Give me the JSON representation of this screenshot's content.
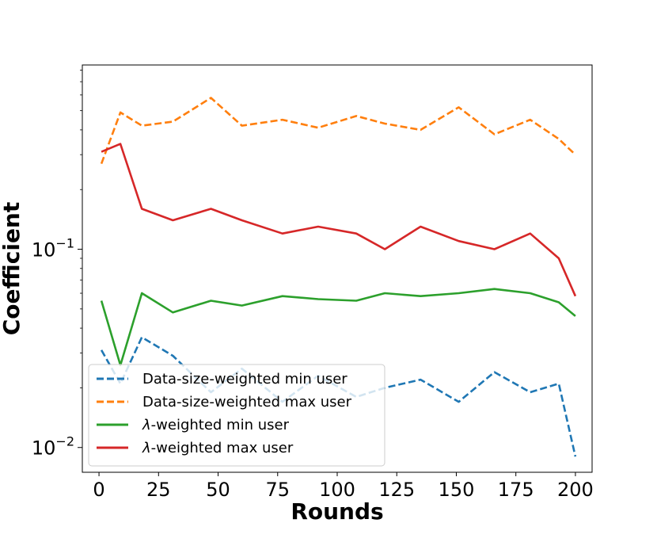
{
  "chart_data": {
    "type": "line",
    "title": "",
    "xlabel": "Rounds",
    "ylabel": "Coefficient",
    "y_scale": "log",
    "xlim": [
      -7,
      207
    ],
    "ylim": [
      0.0075,
      0.85
    ],
    "x_ticks": [
      0,
      25,
      50,
      75,
      100,
      125,
      150,
      175,
      200
    ],
    "x_tick_labels": [
      "0",
      "25",
      "50",
      "75",
      "100",
      "125",
      "150",
      "175",
      "200"
    ],
    "y_ticks": [
      0.01,
      0.1
    ],
    "y_tick_labels": [
      {
        "base": "10",
        "exp": "−2"
      },
      {
        "base": "10",
        "exp": "−1"
      }
    ],
    "grid": false,
    "legend_position": "lower-left",
    "x": [
      1,
      9,
      18,
      31,
      47,
      60,
      77,
      92,
      108,
      120,
      135,
      151,
      166,
      181,
      193,
      200
    ],
    "series": [
      {
        "name": "Data-size-weighted min user",
        "color": "#1f77b4",
        "dash": true,
        "values": [
          0.031,
          0.021,
          0.036,
          0.029,
          0.019,
          0.025,
          0.017,
          0.023,
          0.018,
          0.02,
          0.022,
          0.017,
          0.024,
          0.019,
          0.021,
          0.009
        ]
      },
      {
        "name": "Data-size-weighted max user",
        "color": "#ff7f0e",
        "dash": true,
        "values": [
          0.27,
          0.49,
          0.42,
          0.44,
          0.58,
          0.42,
          0.45,
          0.41,
          0.47,
          0.43,
          0.4,
          0.52,
          0.38,
          0.45,
          0.36,
          0.3
        ]
      },
      {
        "name": "λ-weighted min user",
        "color": "#2ca02c",
        "dash": false,
        "values": [
          0.055,
          0.026,
          0.06,
          0.048,
          0.055,
          0.052,
          0.058,
          0.056,
          0.055,
          0.06,
          0.058,
          0.06,
          0.063,
          0.06,
          0.054,
          0.046
        ]
      },
      {
        "name": "λ-weighted max user",
        "color": "#d62728",
        "dash": false,
        "values": [
          0.31,
          0.34,
          0.16,
          0.14,
          0.16,
          0.14,
          0.12,
          0.13,
          0.12,
          0.1,
          0.13,
          0.11,
          0.1,
          0.12,
          0.09,
          0.058
        ]
      }
    ]
  }
}
